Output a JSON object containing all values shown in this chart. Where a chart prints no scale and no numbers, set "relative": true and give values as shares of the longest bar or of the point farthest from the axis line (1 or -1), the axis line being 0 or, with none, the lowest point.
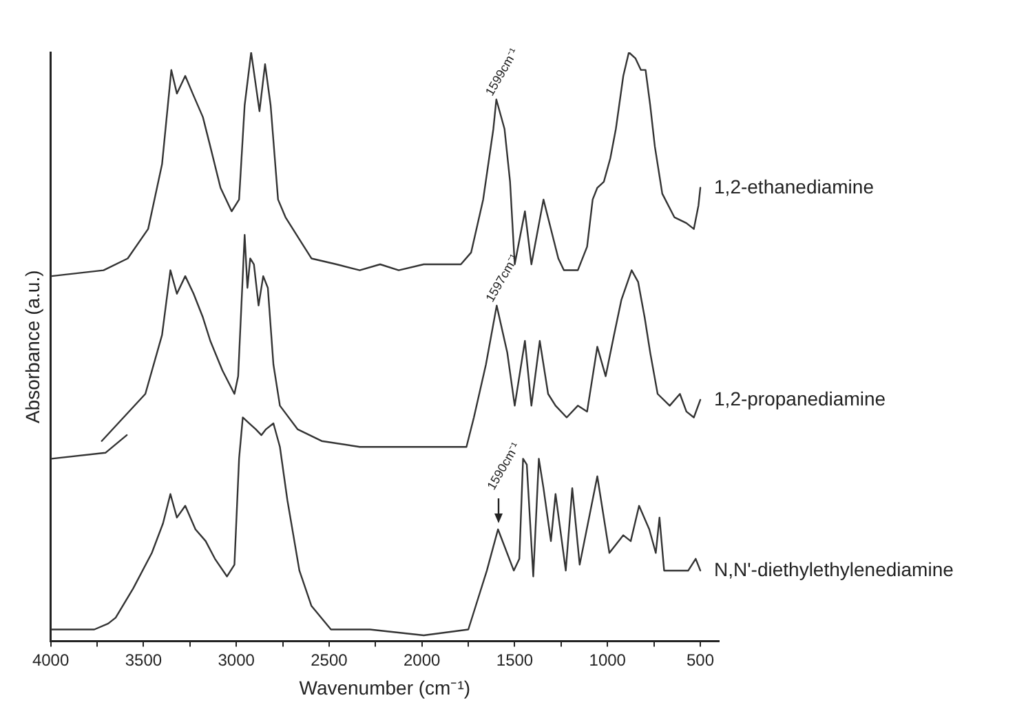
{
  "chart_data": {
    "type": "line",
    "xlabel": "Wavenumber (cm⁻¹)",
    "ylabel": "Absorbance (a.u.)",
    "relative": true,
    "xlim": [
      4000,
      400
    ],
    "xticks": [
      4000,
      {
        "value": 3750,
        "label": null
      },
      3500,
      {
        "value": 3250,
        "label": null
      },
      3000,
      {
        "value": 2750,
        "label": null
      },
      2500,
      {
        "value": 2250,
        "label": null
      },
      2000,
      {
        "value": 1750,
        "label": null
      },
      1500,
      {
        "value": 1250,
        "label": null
      },
      1000,
      {
        "value": 750,
        "label": null
      },
      500
    ],
    "grid": false,
    "legend": false,
    "marker": "none",
    "line_style": "solid",
    "annotations": [
      {
        "text": "1599cm⁻¹",
        "x": 1599,
        "y": 0.92
      },
      {
        "text": "1597cm⁻¹",
        "x": 1597,
        "y": 0.57
      },
      {
        "text": "1590cm⁻¹",
        "x": 1590,
        "y": 0.19
      }
    ],
    "series": [
      {
        "name": "1,2-ethanediamine",
        "color": "#333333",
        "x": [
          3995,
          3715,
          3585,
          3475,
          3400,
          3350,
          3320,
          3275,
          3235,
          3180,
          3140,
          3085,
          3025,
          2985,
          2955,
          2920,
          2875,
          2845,
          2815,
          2775,
          2735,
          2655,
          2595,
          2460,
          2335,
          2225,
          2125,
          1990,
          1790,
          1735,
          1670,
          1615,
          1599,
          1555,
          1525,
          1500,
          1445,
          1410,
          1345,
          1305,
          1265,
          1235,
          1160,
          1110,
          1080,
          1055,
          1020,
          985,
          955,
          915,
          885,
          850,
          820,
          795,
          770,
          745,
          705,
          640,
          575,
          535,
          510,
          500
        ],
        "values": [
          0.62,
          0.63,
          0.65,
          0.7,
          0.81,
          0.97,
          0.93,
          0.96,
          0.93,
          0.89,
          0.84,
          0.77,
          0.73,
          0.75,
          0.91,
          1,
          0.9,
          0.98,
          0.91,
          0.75,
          0.72,
          0.68,
          0.65,
          0.64,
          0.63,
          0.64,
          0.63,
          0.64,
          0.64,
          0.66,
          0.75,
          0.87,
          0.92,
          0.87,
          0.78,
          0.64,
          0.73,
          0.64,
          0.75,
          0.7,
          0.65,
          0.63,
          0.63,
          0.67,
          0.75,
          0.77,
          0.78,
          0.82,
          0.87,
          0.96,
          1,
          0.99,
          0.97,
          0.97,
          0.91,
          0.84,
          0.76,
          0.72,
          0.71,
          0.7,
          0.74,
          0.77
        ]
      },
      {
        "name": "1,2-propanediamine",
        "color": "#333333",
        "x": [
          3995,
          3705,
          3590,
          3650,
          3725,
          3490,
          3400,
          3355,
          3320,
          3275,
          3230,
          3180,
          3140,
          3075,
          3010,
          2990,
          2955,
          2940,
          2925,
          2905,
          2880,
          2855,
          2830,
          2800,
          2765,
          2670,
          2540,
          2335,
          2125,
          1945,
          1760,
          1720,
          1655,
          1597,
          1540,
          1500,
          1445,
          1410,
          1365,
          1320,
          1280,
          1220,
          1160,
          1110,
          1055,
          1010,
          965,
          925,
          870,
          835,
          800,
          770,
          730,
          665,
          610,
          575,
          535,
          500
        ],
        "values": [
          0.31,
          0.32,
          0.35,
          null,
          0.34,
          0.42,
          0.52,
          0.63,
          0.59,
          0.62,
          0.59,
          0.55,
          0.51,
          0.46,
          0.42,
          0.45,
          0.69,
          0.6,
          0.65,
          0.64,
          0.57,
          0.62,
          0.6,
          0.47,
          0.4,
          0.36,
          0.34,
          0.33,
          0.33,
          0.33,
          0.33,
          0.38,
          0.47,
          0.57,
          0.49,
          0.4,
          0.51,
          0.4,
          0.51,
          0.42,
          0.4,
          0.38,
          0.4,
          0.39,
          0.5,
          0.45,
          0.52,
          0.58,
          0.63,
          0.61,
          0.55,
          0.49,
          0.42,
          0.4,
          0.42,
          0.39,
          0.38,
          0.41
        ]
      },
      {
        "name": "N,N'-diethylethylenediamine",
        "color": "#333333",
        "x": [
          3995,
          3765,
          3690,
          3650,
          3555,
          3455,
          3395,
          3355,
          3320,
          3275,
          3220,
          3165,
          3115,
          3050,
          3010,
          2985,
          2965,
          2930,
          2895,
          2865,
          2840,
          2800,
          2765,
          2725,
          2660,
          2595,
          2490,
          2280,
          1990,
          1750,
          1710,
          1650,
          1590,
          1505,
          1475,
          1455,
          1435,
          1400,
          1370,
          1345,
          1305,
          1280,
          1225,
          1190,
          1150,
          1055,
          990,
          915,
          875,
          830,
          775,
          740,
          720,
          695,
          640,
          565,
          525,
          500
        ],
        "values": [
          0.02,
          0.02,
          0.03,
          0.04,
          0.09,
          0.15,
          0.2,
          0.25,
          0.21,
          0.23,
          0.19,
          0.17,
          0.14,
          0.11,
          0.13,
          0.31,
          0.38,
          0.37,
          0.36,
          0.35,
          0.36,
          0.37,
          0.33,
          0.24,
          0.12,
          0.06,
          0.02,
          0.02,
          0.01,
          0.02,
          0.06,
          0.12,
          0.19,
          0.12,
          0.14,
          0.31,
          0.3,
          0.11,
          0.31,
          0.26,
          0.17,
          0.25,
          0.12,
          0.26,
          0.13,
          0.28,
          0.15,
          0.18,
          0.17,
          0.23,
          0.19,
          0.15,
          0.21,
          0.12,
          0.12,
          0.12,
          0.14,
          0.12
        ]
      }
    ]
  }
}
